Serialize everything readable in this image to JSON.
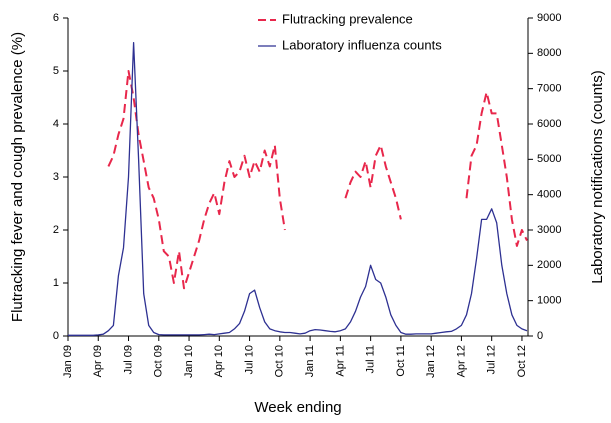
{
  "chart_data": {
    "type": "line",
    "x_label": "Week ending",
    "y_label": "Flutracking fever and cough prevalence  (%)",
    "y2_label": "Laboratory notifications (counts)",
    "x": [
      0,
      0.5,
      1,
      1.5,
      2,
      2.5,
      3,
      3.5,
      4,
      4.5,
      5,
      5.5,
      6,
      6.5,
      7,
      7.5,
      8,
      8.5,
      9,
      9.5,
      10,
      10.5,
      11,
      11.5,
      12,
      12.5,
      13,
      13.5,
      14,
      14.5,
      15,
      15.5,
      16,
      16.5,
      17,
      17.5,
      18,
      18.5,
      19,
      19.5,
      20,
      20.5,
      21,
      21.5,
      22,
      22.5,
      23,
      23.5,
      24,
      24.5,
      25,
      25.5,
      26,
      26.5,
      27,
      27.5,
      28,
      28.5,
      29,
      29.5,
      30,
      30.5,
      31,
      31.5,
      32,
      32.5,
      33,
      33.5,
      34,
      34.5,
      35,
      35.5,
      36,
      36.5,
      37,
      37.5,
      38,
      38.5,
      39,
      39.5,
      40,
      40.5,
      41,
      41.5,
      42,
      42.5,
      43,
      43.5,
      44,
      44.5,
      45,
      45.5
    ],
    "xlim": [
      0,
      45.6
    ],
    "xticks": [
      {
        "value": 0,
        "label": "Jan 09"
      },
      {
        "value": 3,
        "label": "Apr 09"
      },
      {
        "value": 6,
        "label": "Jul 09"
      },
      {
        "value": 9,
        "label": "Oct 09"
      },
      {
        "value": 12,
        "label": "Jan 10"
      },
      {
        "value": 15,
        "label": "Apr 10"
      },
      {
        "value": 18,
        "label": "Jul 10"
      },
      {
        "value": 21,
        "label": "Oct 10"
      },
      {
        "value": 24,
        "label": "Jan 11"
      },
      {
        "value": 27,
        "label": "Apr 11"
      },
      {
        "value": 30,
        "label": "Jul 11"
      },
      {
        "value": 33,
        "label": "Oct 11"
      },
      {
        "value": 36,
        "label": "Jan 12"
      },
      {
        "value": 39,
        "label": "Apr 12"
      },
      {
        "value": 42,
        "label": "Jul 12"
      },
      {
        "value": 45,
        "label": "Oct 12"
      }
    ],
    "ylim": [
      0,
      6
    ],
    "yticks": [
      0,
      1,
      2,
      3,
      4,
      5,
      6
    ],
    "y2lim": [
      0,
      9000
    ],
    "y2ticks": [
      0,
      1000,
      2000,
      3000,
      4000,
      5000,
      6000,
      7000,
      8000,
      9000
    ],
    "grid": false,
    "legend": "top-right",
    "series": [
      {
        "name": "Flutracking prevalence",
        "color": "#e8274b",
        "dashed": true,
        "values": [
          null,
          null,
          null,
          null,
          null,
          null,
          null,
          null,
          3.2,
          3.4,
          3.8,
          4.1,
          5.0,
          4.5,
          3.8,
          3.3,
          2.8,
          2.6,
          2.2,
          1.6,
          1.5,
          1.0,
          1.6,
          0.9,
          1.2,
          1.5,
          1.8,
          2.2,
          2.5,
          2.7,
          2.3,
          2.9,
          3.3,
          3.0,
          3.1,
          3.4,
          3.0,
          3.3,
          3.1,
          3.5,
          3.2,
          3.6,
          2.6,
          2.0,
          null,
          null,
          null,
          null,
          null,
          null,
          null,
          null,
          null,
          null,
          null,
          2.6,
          2.9,
          3.1,
          3.0,
          3.3,
          2.8,
          3.4,
          3.6,
          3.2,
          2.9,
          2.6,
          2.2,
          null,
          null,
          null,
          null,
          null,
          null,
          null,
          null,
          null,
          null,
          null,
          null,
          2.6,
          3.4,
          3.6,
          4.2,
          4.6,
          4.2,
          4.2,
          3.6,
          3.0,
          2.2,
          1.7,
          2.0,
          1.8
        ]
      },
      {
        "name": "Laboratory influenza counts",
        "color": "#2e3192",
        "dashed": false,
        "axis": "y2",
        "values": [
          20,
          20,
          20,
          20,
          20,
          20,
          30,
          50,
          150,
          300,
          1700,
          2500,
          4500,
          8300,
          5000,
          1200,
          300,
          100,
          40,
          30,
          30,
          30,
          30,
          30,
          30,
          30,
          30,
          40,
          50,
          40,
          60,
          80,
          100,
          200,
          350,
          700,
          1200,
          1300,
          800,
          400,
          200,
          150,
          120,
          100,
          100,
          80,
          60,
          80,
          150,
          180,
          170,
          150,
          130,
          120,
          150,
          200,
          400,
          700,
          1100,
          1400,
          2000,
          1600,
          1500,
          1100,
          600,
          300,
          100,
          50,
          50,
          60,
          60,
          60,
          60,
          80,
          100,
          120,
          130,
          200,
          300,
          600,
          1200,
          2200,
          3300,
          3300,
          3600,
          3200,
          2000,
          1200,
          600,
          300,
          200,
          150
        ]
      }
    ]
  }
}
